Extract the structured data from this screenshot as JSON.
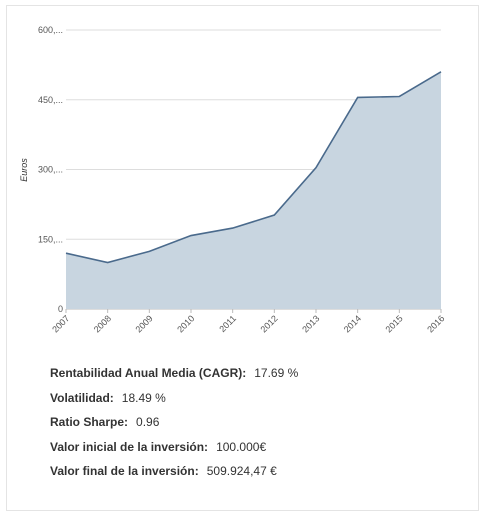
{
  "chart_data": {
    "type": "area",
    "title": "",
    "xlabel": "",
    "ylabel": "Euros",
    "x": [
      "2007",
      "2008",
      "2009",
      "2010",
      "2011",
      "2012",
      "2013",
      "2014",
      "2015",
      "2016"
    ],
    "series": [
      {
        "values": [
          120,
          100,
          124,
          158,
          174,
          202,
          304,
          455,
          457,
          510
        ]
      }
    ],
    "ylim": [
      0,
      600
    ],
    "yticks": [
      0,
      150,
      300,
      450,
      600
    ],
    "ytick_labels": [
      "0",
      "150,...",
      "300,...",
      "450,...",
      "600,..."
    ],
    "grid": true,
    "legend": "none",
    "fill_color": "#c8d5e0",
    "line_color": "#4a6a8c"
  },
  "stats": [
    {
      "label": "Rentabilidad Anual Media (CAGR):",
      "value": "17.69 %"
    },
    {
      "label": "Volatilidad:",
      "value": "18.49 %"
    },
    {
      "label": "Ratio Sharpe:",
      "value": "0.96"
    },
    {
      "label": "Valor inicial de la inversión:",
      "value": "100.000€"
    },
    {
      "label": "Valor final de la inversión:",
      "value": "509.924,47 €"
    }
  ]
}
